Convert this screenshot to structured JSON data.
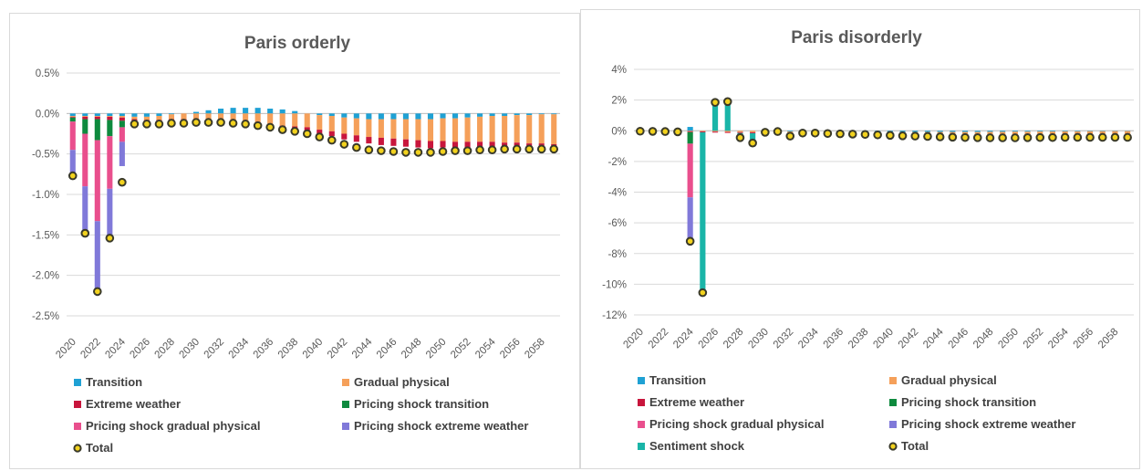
{
  "colors": {
    "Transition": "#1fa1d4",
    "Gradual physical": "#f5a05a",
    "Extreme weather": "#c8153c",
    "Pricing shock transition": "#0e8a3e",
    "Pricing shock gradual physical": "#e94f8d",
    "Pricing shock extreme weather": "#8079d9",
    "Sentiment shock": "#1ab5a8",
    "Total": "#f2d21e",
    "axis": "#d9d9d9",
    "text": "#595959"
  },
  "chart_data": [
    {
      "type": "bar",
      "subtype": "stacked-bar-with-total-markers",
      "title": "Paris orderly",
      "x": [
        2020,
        2021,
        2022,
        2023,
        2024,
        2025,
        2026,
        2027,
        2028,
        2029,
        2030,
        2031,
        2032,
        2033,
        2034,
        2035,
        2036,
        2037,
        2038,
        2039,
        2040,
        2041,
        2042,
        2043,
        2044,
        2045,
        2046,
        2047,
        2048,
        2049,
        2050,
        2051,
        2052,
        2053,
        2054,
        2055,
        2056,
        2057,
        2058,
        2059
      ],
      "x_tick_labels": [
        "2020",
        "2022",
        "2024",
        "2026",
        "2028",
        "2030",
        "2032",
        "2034",
        "2036",
        "2038",
        "2040",
        "2042",
        "2044",
        "2046",
        "2048",
        "2050",
        "2052",
        "2054",
        "2056",
        "2058"
      ],
      "ylim": [
        -2.5,
        0.5
      ],
      "y_tick_labels": [
        "0.5%",
        "0.0%",
        "-0.5%",
        "-1.0%",
        "-1.5%",
        "-2.0%",
        "-2.5%"
      ],
      "grid": true,
      "legend_position": "bottom",
      "legend": [
        "Transition",
        "Gradual physical",
        "Extreme weather",
        "Pricing shock transition",
        "Pricing shock gradual physical",
        "Pricing shock extreme weather",
        "Total"
      ],
      "series": [
        {
          "name": "Transition",
          "values": [
            -0.03,
            -0.03,
            -0.03,
            -0.03,
            -0.03,
            -0.04,
            -0.04,
            -0.03,
            -0.01,
            0.0,
            0.02,
            0.04,
            0.06,
            0.07,
            0.07,
            0.07,
            0.06,
            0.05,
            0.03,
            0.0,
            -0.02,
            -0.03,
            -0.05,
            -0.06,
            -0.07,
            -0.07,
            -0.07,
            -0.07,
            -0.07,
            -0.07,
            -0.06,
            -0.06,
            -0.05,
            -0.04,
            -0.03,
            -0.03,
            -0.02,
            -0.02,
            -0.01,
            -0.01
          ]
        },
        {
          "name": "Gradual physical",
          "values": [
            -0.01,
            -0.01,
            -0.01,
            -0.01,
            -0.02,
            -0.03,
            -0.04,
            -0.05,
            -0.06,
            -0.07,
            -0.08,
            -0.09,
            -0.1,
            -0.11,
            -0.12,
            -0.13,
            -0.14,
            -0.15,
            -0.16,
            -0.17,
            -0.18,
            -0.19,
            -0.2,
            -0.21,
            -0.22,
            -0.23,
            -0.24,
            -0.25,
            -0.26,
            -0.27,
            -0.28,
            -0.29,
            -0.3,
            -0.31,
            -0.32,
            -0.33,
            -0.34,
            -0.35,
            -0.36,
            -0.37
          ]
        },
        {
          "name": "Extreme weather",
          "values": [
            -0.01,
            -0.03,
            -0.03,
            -0.04,
            -0.04,
            -0.04,
            -0.04,
            -0.04,
            -0.04,
            -0.04,
            -0.04,
            -0.04,
            -0.04,
            -0.04,
            -0.04,
            -0.04,
            -0.04,
            -0.04,
            -0.05,
            -0.05,
            -0.05,
            -0.06,
            -0.07,
            -0.08,
            -0.08,
            -0.09,
            -0.09,
            -0.09,
            -0.09,
            -0.09,
            -0.08,
            -0.08,
            -0.08,
            -0.08,
            -0.08,
            -0.07,
            -0.07,
            -0.06,
            -0.06,
            -0.06
          ]
        },
        {
          "name": "Pricing shock transition",
          "values": [
            -0.05,
            -0.18,
            -0.26,
            -0.2,
            -0.08,
            0,
            0,
            0,
            0,
            0,
            0,
            0,
            0,
            0,
            0,
            0,
            0,
            0,
            0,
            0,
            0,
            0,
            0,
            0,
            0,
            0,
            0,
            0,
            0,
            0,
            0,
            0,
            0,
            0,
            0,
            0,
            0,
            0,
            0,
            0
          ]
        },
        {
          "name": "Pricing shock gradual physical",
          "values": [
            -0.35,
            -0.65,
            -1.0,
            -0.65,
            -0.18,
            0,
            0,
            0,
            0,
            0,
            0,
            0,
            0,
            0,
            0,
            0,
            0,
            0,
            0,
            0,
            0,
            0,
            0,
            0,
            0,
            0,
            0,
            0,
            0,
            0,
            0,
            0,
            0,
            0,
            0,
            0,
            0,
            0,
            0,
            0
          ]
        },
        {
          "name": "Pricing shock extreme weather",
          "values": [
            -0.3,
            -0.58,
            -0.88,
            -0.6,
            -0.3,
            0,
            0,
            0,
            0,
            0,
            0,
            0,
            0,
            0,
            0,
            0,
            0,
            0,
            0,
            0,
            0,
            0,
            0,
            0,
            0,
            0,
            0,
            0,
            0,
            0,
            0,
            0,
            0,
            0,
            0,
            0,
            0,
            0,
            0,
            0
          ]
        },
        {
          "name": "Total",
          "values": [
            -0.77,
            -1.48,
            -2.2,
            -1.54,
            -0.85,
            -0.13,
            -0.13,
            -0.13,
            -0.12,
            -0.12,
            -0.11,
            -0.11,
            -0.11,
            -0.12,
            -0.13,
            -0.15,
            -0.17,
            -0.2,
            -0.22,
            -0.25,
            -0.29,
            -0.33,
            -0.38,
            -0.42,
            -0.45,
            -0.46,
            -0.47,
            -0.48,
            -0.48,
            -0.48,
            -0.47,
            -0.46,
            -0.46,
            -0.45,
            -0.45,
            -0.44,
            -0.44,
            -0.44,
            -0.44,
            -0.44
          ]
        }
      ]
    },
    {
      "type": "bar",
      "subtype": "stacked-bar-with-total-markers",
      "title": "Paris disorderly",
      "x": [
        2020,
        2021,
        2022,
        2023,
        2024,
        2025,
        2026,
        2027,
        2028,
        2029,
        2030,
        2031,
        2032,
        2033,
        2034,
        2035,
        2036,
        2037,
        2038,
        2039,
        2040,
        2041,
        2042,
        2043,
        2044,
        2045,
        2046,
        2047,
        2048,
        2049,
        2050,
        2051,
        2052,
        2053,
        2054,
        2055,
        2056,
        2057,
        2058,
        2059
      ],
      "x_tick_labels": [
        "2020",
        "2022",
        "2024",
        "2026",
        "2028",
        "2030",
        "2032",
        "2034",
        "2036",
        "2038",
        "2040",
        "2042",
        "2044",
        "2046",
        "2048",
        "2050",
        "2052",
        "2054",
        "2056",
        "2058"
      ],
      "ylim": [
        -12,
        4
      ],
      "y_tick_labels": [
        "4%",
        "2%",
        "0%",
        "-2%",
        "-4%",
        "-6%",
        "-8%",
        "-10%",
        "-12%"
      ],
      "grid": true,
      "legend_position": "bottom",
      "legend": [
        "Transition",
        "Gradual physical",
        "Extreme weather",
        "Pricing shock transition",
        "Pricing shock gradual physical",
        "Pricing shock extreme weather",
        "Sentiment shock",
        "Total"
      ],
      "series": [
        {
          "name": "Transition",
          "values": [
            0,
            0,
            0,
            0,
            0.25,
            0,
            0,
            0,
            0,
            0,
            0,
            0,
            -0.05,
            -0.05,
            -0.05,
            -0.05,
            -0.06,
            -0.06,
            -0.06,
            -0.07,
            -0.07,
            -0.08,
            -0.08,
            -0.08,
            -0.08,
            -0.08,
            -0.08,
            -0.08,
            -0.07,
            -0.07,
            -0.06,
            -0.06,
            -0.05,
            -0.05,
            -0.04,
            -0.04,
            -0.03,
            -0.03,
            -0.02,
            -0.02
          ]
        },
        {
          "name": "Gradual physical",
          "values": [
            -0.01,
            -0.01,
            -0.01,
            -0.02,
            -0.03,
            -0.04,
            -0.06,
            -0.08,
            -0.09,
            -0.1,
            -0.11,
            -0.12,
            -0.13,
            -0.14,
            -0.15,
            -0.16,
            -0.17,
            -0.18,
            -0.19,
            -0.2,
            -0.21,
            -0.22,
            -0.23,
            -0.24,
            -0.25,
            -0.26,
            -0.27,
            -0.28,
            -0.29,
            -0.3,
            -0.31,
            -0.32,
            -0.33,
            -0.34,
            -0.35,
            -0.36,
            -0.37,
            -0.38,
            -0.39,
            -0.4
          ]
        },
        {
          "name": "Extreme weather",
          "values": [
            -0.02,
            -0.03,
            -0.04,
            -0.05,
            -0.06,
            -0.06,
            -0.06,
            -0.06,
            -0.06,
            -0.06,
            -0.06,
            -0.06,
            -0.06,
            -0.06,
            -0.06,
            -0.06,
            -0.06,
            -0.06,
            -0.06,
            -0.06,
            -0.06,
            -0.06,
            -0.06,
            -0.06,
            -0.06,
            -0.06,
            -0.06,
            -0.06,
            -0.06,
            -0.06,
            -0.06,
            -0.06,
            -0.06,
            -0.06,
            -0.06,
            -0.06,
            -0.06,
            -0.06,
            -0.06,
            -0.06
          ]
        },
        {
          "name": "Pricing shock transition",
          "values": [
            0,
            0,
            0,
            0,
            -0.75,
            0,
            0,
            0,
            0,
            0,
            0,
            0,
            0,
            0,
            0,
            0,
            0,
            0,
            0,
            0,
            0,
            0,
            0,
            0,
            0,
            0,
            0,
            0,
            0,
            0,
            0,
            0,
            0,
            0,
            0,
            0,
            0,
            0,
            0,
            0
          ]
        },
        {
          "name": "Pricing shock gradual physical",
          "values": [
            0,
            0,
            0,
            0,
            -3.5,
            0,
            0,
            0,
            0,
            0,
            0,
            0,
            0,
            0,
            0,
            0,
            0,
            0,
            0,
            0,
            0,
            0,
            0,
            0,
            0,
            0,
            0,
            0,
            0,
            0,
            0,
            0,
            0,
            0,
            0,
            0,
            0,
            0,
            0,
            0
          ]
        },
        {
          "name": "Pricing shock extreme weather",
          "values": [
            0,
            0,
            0,
            0,
            -2.85,
            0,
            0,
            0,
            0,
            0,
            0,
            0,
            0,
            0,
            0,
            0,
            0,
            0,
            0,
            0,
            0,
            0,
            0,
            0,
            0,
            0,
            0,
            0,
            0,
            0,
            0,
            0,
            0,
            0,
            0,
            0,
            0,
            0,
            0,
            0
          ]
        },
        {
          "name": "Sentiment shock",
          "values": [
            0,
            0,
            0,
            0,
            0,
            -10.5,
            1.95,
            1.95,
            -0.3,
            -0.5,
            0,
            0,
            0,
            0,
            0,
            0,
            0,
            0,
            0,
            0,
            0,
            0,
            0,
            0,
            0,
            0,
            0,
            0,
            0,
            0,
            0,
            0,
            0,
            0,
            0,
            0,
            0,
            0,
            0,
            0
          ]
        },
        {
          "name": "Total",
          "values": [
            -0.03,
            -0.04,
            -0.05,
            -0.07,
            -7.2,
            -10.55,
            1.85,
            1.9,
            -0.45,
            -0.8,
            -0.1,
            -0.05,
            -0.35,
            -0.15,
            -0.15,
            -0.18,
            -0.2,
            -0.22,
            -0.24,
            -0.27,
            -0.3,
            -0.33,
            -0.35,
            -0.37,
            -0.4,
            -0.42,
            -0.44,
            -0.45,
            -0.46,
            -0.46,
            -0.46,
            -0.45,
            -0.44,
            -0.44,
            -0.43,
            -0.43,
            -0.43,
            -0.43,
            -0.43,
            -0.43
          ]
        }
      ]
    }
  ]
}
